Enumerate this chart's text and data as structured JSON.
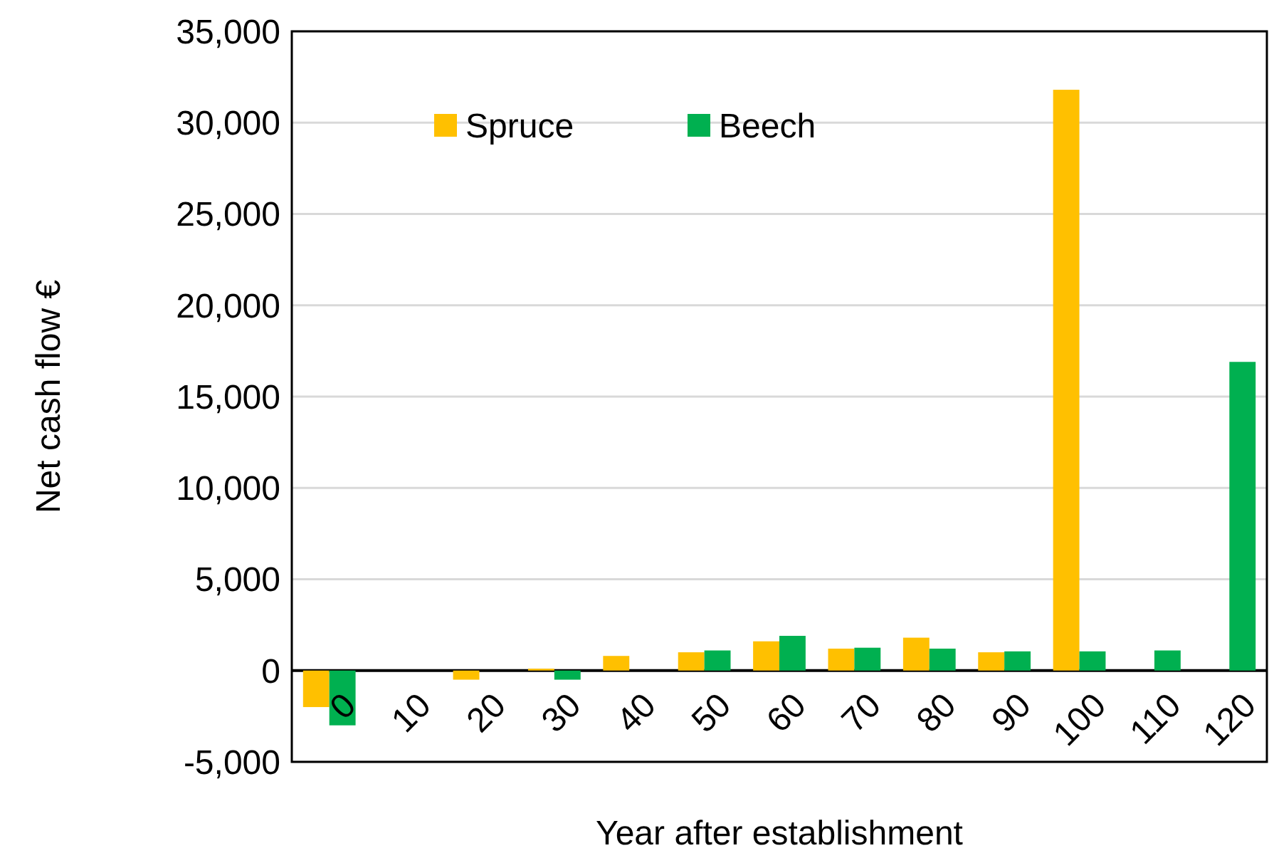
{
  "chart_data": {
    "type": "bar",
    "xlabel": "Year after establishment",
    "ylabel": "Net cash flow €",
    "categories": [
      "0",
      "10",
      "20",
      "30",
      "40",
      "50",
      "60",
      "70",
      "80",
      "90",
      "100",
      "110",
      "120"
    ],
    "series": [
      {
        "name": "Spruce",
        "color": "#ffc000",
        "values": [
          -2000,
          null,
          -500,
          100,
          800,
          1000,
          1600,
          1200,
          1800,
          1000,
          31800,
          null,
          null
        ]
      },
      {
        "name": "Beech",
        "color": "#00b050",
        "values": [
          -3000,
          null,
          null,
          -500,
          null,
          1100,
          1900,
          1250,
          1200,
          1050,
          1050,
          1100,
          16900
        ]
      }
    ],
    "ylim": [
      -5000,
      35000
    ],
    "yticks": [
      {
        "value": -5000,
        "label": "-5,000"
      },
      {
        "value": 0,
        "label": "0"
      },
      {
        "value": 5000,
        "label": "5,000"
      },
      {
        "value": 10000,
        "label": "10,000"
      },
      {
        "value": 15000,
        "label": "15,000"
      },
      {
        "value": 20000,
        "label": "20,000"
      },
      {
        "value": 25000,
        "label": "25,000"
      },
      {
        "value": 30000,
        "label": "30,000"
      },
      {
        "value": 35000,
        "label": "35,000"
      }
    ],
    "grid": "y",
    "legend": "top left"
  }
}
